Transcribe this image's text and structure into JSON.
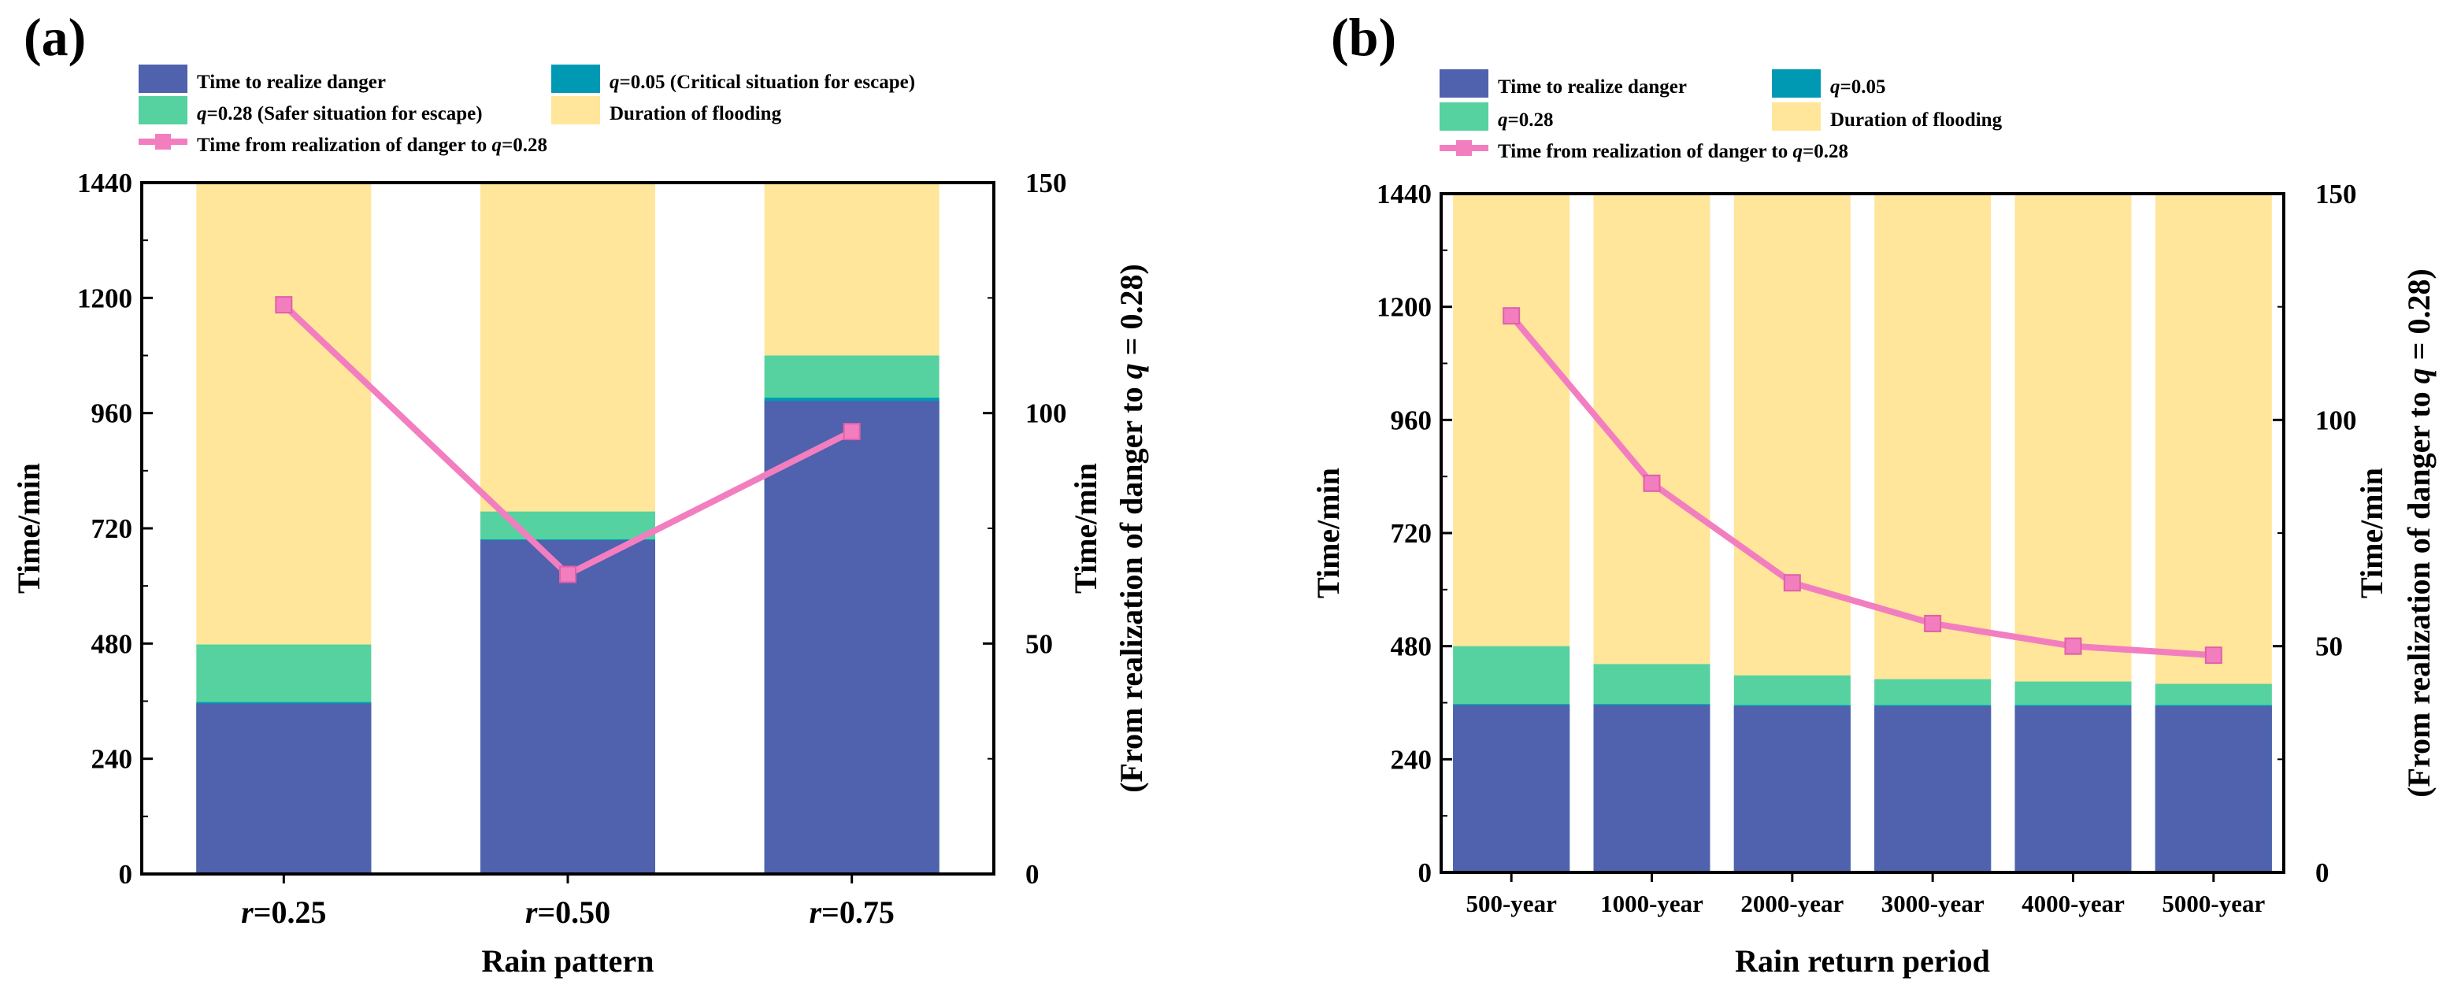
{
  "figure": {
    "legend_colors": {
      "time_to_realize_danger": "#5061ad",
      "q005": "#0099b3",
      "q028": "#55d2a0",
      "duration_of_flooding": "#ffe69a",
      "time_to_q028_line": "#f27ec0"
    }
  },
  "chart_data": [
    {
      "panel": "(a)",
      "type": "bar",
      "stacked": true,
      "xlabel": "Rain pattern",
      "categories": [
        {
          "var": "r",
          "rest": "=0.25"
        },
        {
          "var": "r",
          "rest": "=0.50"
        },
        {
          "var": "r",
          "rest": "=0.75"
        }
      ],
      "ylabel": "Time/min",
      "ylim": [
        0,
        1440
      ],
      "yticks": [
        "0",
        "240",
        "480",
        "720",
        "960",
        "1200",
        "1440"
      ],
      "y2label_line1": "Time/min",
      "y2label_line2_prefix": "(From realization of danger to ",
      "y2label_line2_var": "q",
      "y2label_line2_suffix": " = 0.28)",
      "y2lim": [
        0,
        150
      ],
      "y2ticks": [
        "0",
        "50",
        "100",
        "150"
      ],
      "legend": [
        {
          "key": "time_to_realize_danger",
          "kind": "box",
          "label_plain": "Time to realize danger"
        },
        {
          "key": "q005",
          "kind": "box",
          "label_var": "q",
          "label_rest": "=0.05 (Critical situation for escape)"
        },
        {
          "key": "q028",
          "kind": "box",
          "label_var": "q",
          "label_rest": "=0.28 (Safer situation for escape)"
        },
        {
          "key": "duration_of_flooding",
          "kind": "box",
          "label_plain": "Duration of flooding"
        },
        {
          "key": "time_to_q028_line",
          "kind": "line",
          "label_plain": "Time from realization of danger to ",
          "label_var": "q",
          "label_rest": "=0.28"
        }
      ],
      "series": [
        {
          "name": "Time to realize danger",
          "key": "time_to_realize_danger",
          "values": [
            355,
            695,
            985
          ]
        },
        {
          "name": "q=0.05",
          "key": "q005",
          "values": [
            358,
            697,
            992
          ]
        },
        {
          "name": "q=0.28",
          "key": "q028",
          "values": [
            478,
            755,
            1080
          ]
        },
        {
          "name": "Duration of flooding",
          "key": "duration_of_flooding",
          "values": [
            1440,
            1440,
            1440
          ]
        }
      ],
      "line_series": {
        "name": "Time from realization of danger to q=0.28",
        "axis": "right",
        "values": [
          123.5,
          65,
          96
        ]
      }
    },
    {
      "panel": "(b)",
      "type": "bar",
      "stacked": true,
      "xlabel": "Rain return period",
      "categories": [
        "500-year",
        "1000-year",
        "2000-year",
        "3000-year",
        "4000-year",
        "5000-year"
      ],
      "ylabel": "Time/min",
      "ylim": [
        0,
        1440
      ],
      "yticks": [
        "0",
        "240",
        "480",
        "720",
        "960",
        "1200",
        "1440"
      ],
      "y2label_line1": "Time/min",
      "y2label_line2_prefix": "(From realization of danger to ",
      "y2label_line2_var": "q",
      "y2label_line2_suffix": " = 0.28)",
      "y2lim": [
        0,
        150
      ],
      "y2ticks": [
        "0",
        "50",
        "100",
        "150"
      ],
      "legend": [
        {
          "key": "time_to_realize_danger",
          "kind": "box",
          "label_plain": "Time to realize danger"
        },
        {
          "key": "q005",
          "kind": "box",
          "label_var": "q",
          "label_rest": "=0.05"
        },
        {
          "key": "q028",
          "kind": "box",
          "label_var": "q",
          "label_rest": "=0.28"
        },
        {
          "key": "duration_of_flooding",
          "kind": "box",
          "label_plain": "Duration of flooding"
        },
        {
          "key": "time_to_q028_line",
          "kind": "line",
          "label_plain": "Time from realization of danger to ",
          "label_var": "q",
          "label_rest": "=0.28"
        }
      ],
      "series": [
        {
          "name": "Time to realize danger",
          "key": "time_to_realize_danger",
          "values": [
            355,
            355,
            353,
            353,
            353,
            353
          ]
        },
        {
          "name": "q=0.05",
          "key": "q005",
          "values": [
            357,
            357,
            355,
            355,
            355,
            355
          ]
        },
        {
          "name": "q=0.28",
          "key": "q028",
          "values": [
            480,
            442,
            418,
            410,
            405,
            400
          ]
        },
        {
          "name": "Duration of flooding",
          "key": "duration_of_flooding",
          "values": [
            1440,
            1440,
            1440,
            1440,
            1440,
            1440
          ]
        }
      ],
      "line_series": {
        "name": "Time from realization of danger to q=0.28",
        "axis": "right",
        "values": [
          123,
          86,
          64,
          55,
          50,
          48
        ]
      }
    }
  ]
}
